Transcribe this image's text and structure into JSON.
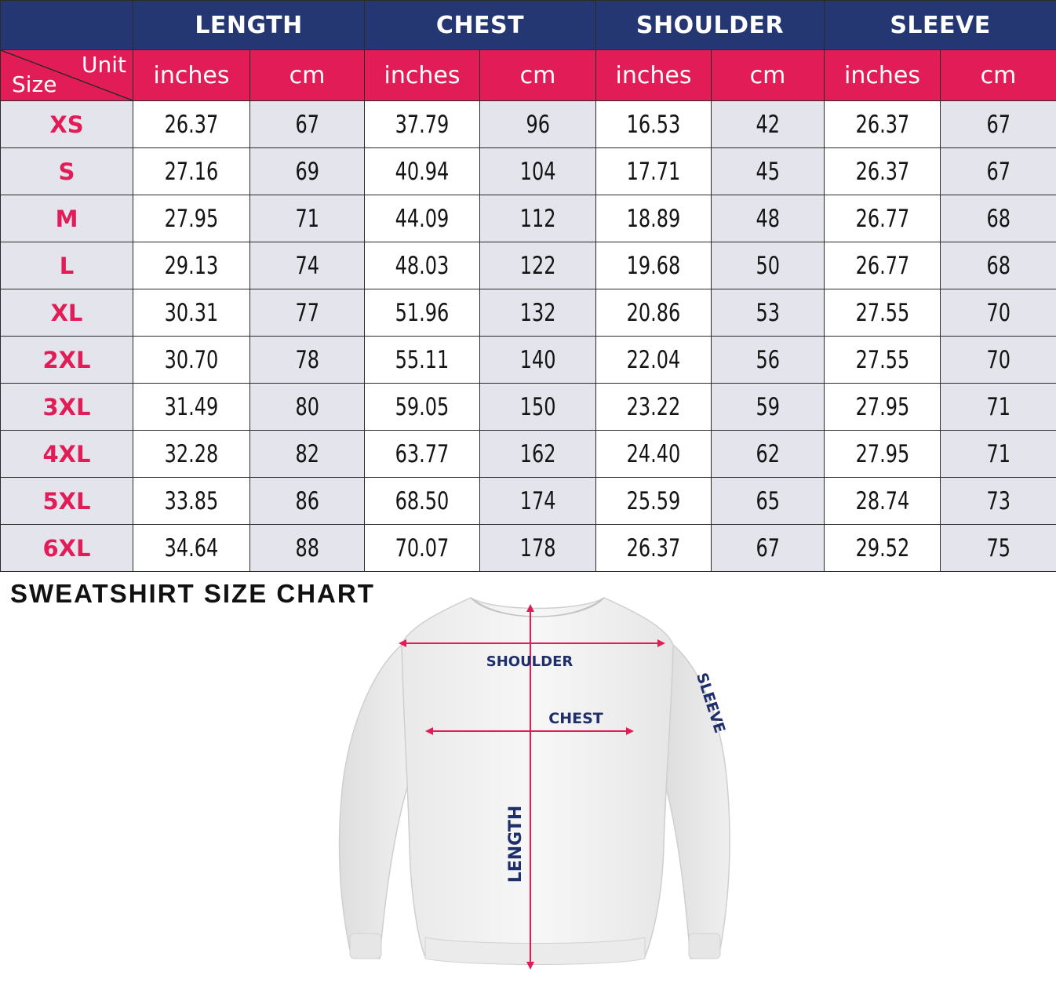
{
  "headers": {
    "groups": [
      "LENGTH",
      "CHEST",
      "SHOULDER",
      "SLEEVE"
    ],
    "corner_unit": "Unit",
    "corner_size": "Size",
    "units": [
      "inches",
      "cm",
      "inches",
      "cm",
      "inches",
      "cm",
      "inches",
      "cm"
    ]
  },
  "rows": [
    {
      "size": "XS",
      "values": [
        "26.37",
        "67",
        "37.79",
        "96",
        "16.53",
        "42",
        "26.37",
        "67"
      ]
    },
    {
      "size": "S",
      "values": [
        "27.16",
        "69",
        "40.94",
        "104",
        "17.71",
        "45",
        "26.37",
        "67"
      ]
    },
    {
      "size": "M",
      "values": [
        "27.95",
        "71",
        "44.09",
        "112",
        "18.89",
        "48",
        "26.77",
        "68"
      ]
    },
    {
      "size": "L",
      "values": [
        "29.13",
        "74",
        "48.03",
        "122",
        "19.68",
        "50",
        "26.77",
        "68"
      ]
    },
    {
      "size": "XL",
      "values": [
        "30.31",
        "77",
        "51.96",
        "132",
        "20.86",
        "53",
        "27.55",
        "70"
      ]
    },
    {
      "size": "2XL",
      "values": [
        "30.70",
        "78",
        "55.11",
        "140",
        "22.04",
        "56",
        "27.55",
        "70"
      ]
    },
    {
      "size": "3XL",
      "values": [
        "31.49",
        "80",
        "59.05",
        "150",
        "23.22",
        "59",
        "27.95",
        "71"
      ]
    },
    {
      "size": "4XL",
      "values": [
        "32.28",
        "82",
        "63.77",
        "162",
        "24.40",
        "62",
        "27.95",
        "71"
      ]
    },
    {
      "size": "5XL",
      "values": [
        "33.85",
        "86",
        "68.50",
        "174",
        "25.59",
        "65",
        "28.74",
        "73"
      ]
    },
    {
      "size": "6XL",
      "values": [
        "34.64",
        "88",
        "70.07",
        "178",
        "26.37",
        "67",
        "29.52",
        "75"
      ]
    }
  ],
  "title": "SWEATSHIRT SIZE CHART",
  "diagram": {
    "shoulder_label": "SHOULDER",
    "chest_label": "CHEST",
    "length_label": "LENGTH",
    "sleeve_label": "SLEEVE"
  },
  "colors": {
    "header_navy": "#253772",
    "accent_pink": "#e21c57",
    "row_grey": "#e4e4ec",
    "label_navy": "#1f2f6b"
  }
}
